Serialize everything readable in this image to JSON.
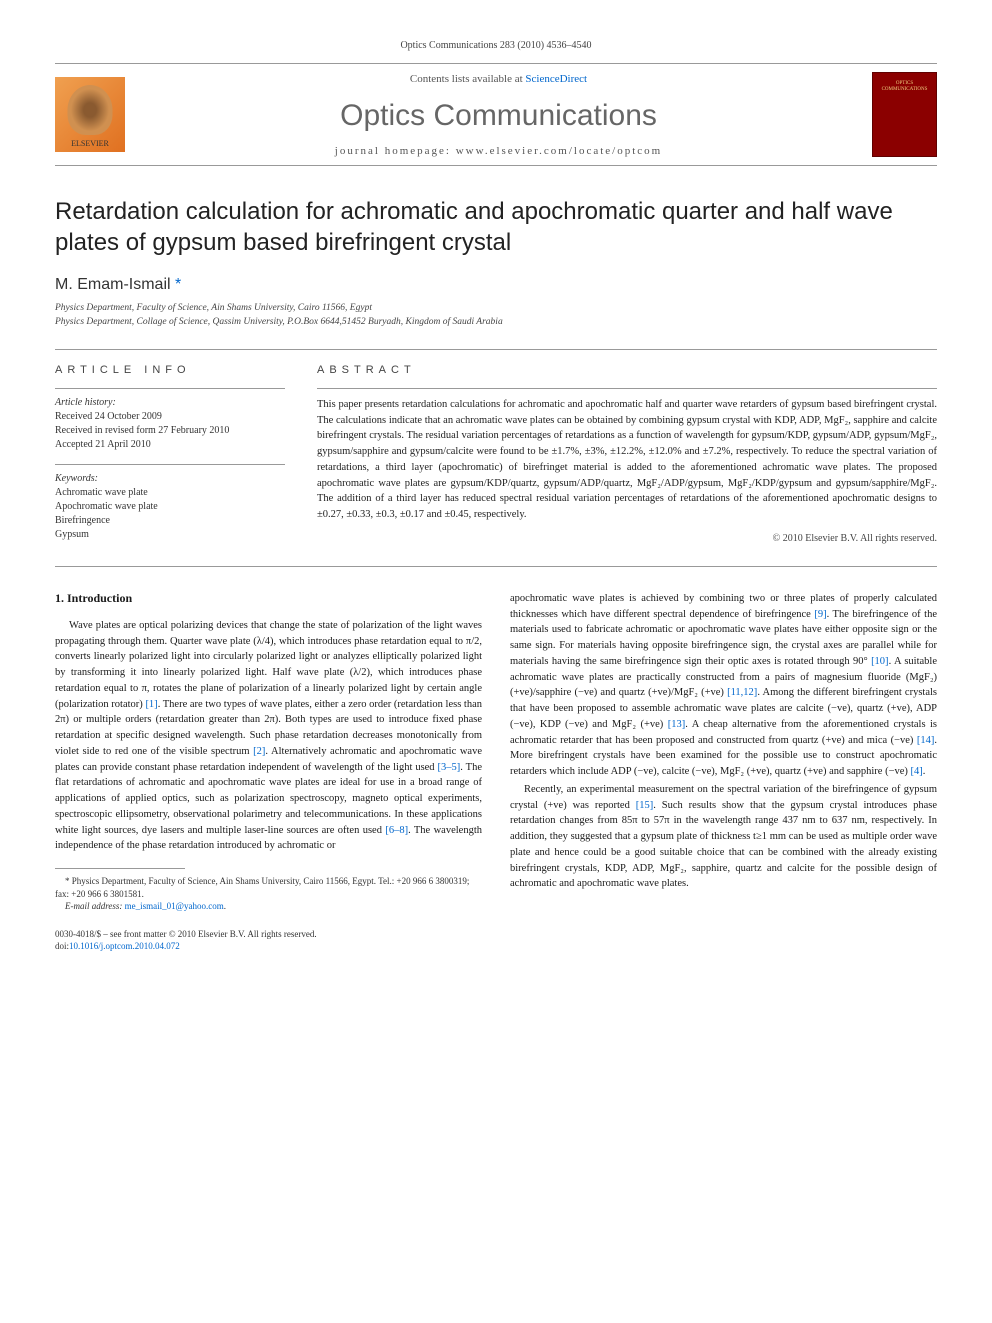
{
  "header": {
    "citation": "Optics Communications 283 (2010) 4536–4540",
    "contentsText": "Contents lists available at ",
    "contentsLink": "ScienceDirect",
    "journalName": "Optics Communications",
    "homepageLabel": "journal homepage: www.elsevier.com/locate/optcom",
    "elsevierLabel": "ELSEVIER",
    "coverLabel": "OPTICS COMMUNICATIONS"
  },
  "title": "Retardation calculation for achromatic and apochromatic quarter and half wave plates of gypsum based birefringent crystal",
  "author": "M. Emam-Ismail",
  "asterisk": "*",
  "affiliations": [
    "Physics Department, Faculty of Science, Ain Shams University, Cairo 11566, Egypt",
    "Physics Department, Collage of Science, Qassim University, P.O.Box 6644,51452 Buryadh, Kingdom of Saudi Arabia"
  ],
  "articleInfo": {
    "heading": "ARTICLE INFO",
    "historyHead": "Article history:",
    "history": "Received 24 October 2009\nReceived in revised form 27 February 2010\nAccepted 21 April 2010",
    "keywordsHead": "Keywords:",
    "keywords": "Achromatic wave plate\nApochromatic wave plate\nBirefringence\nGypsum"
  },
  "abstract": {
    "heading": "ABSTRACT",
    "text": "This paper presents retardation calculations for achromatic and apochromatic half and quarter wave retarders of gypsum based birefringent crystal. The calculations indicate that an achromatic wave plates can be obtained by combining gypsum crystal with KDP, ADP, MgF₂, sapphire and calcite birefringent crystals. The residual variation percentages of retardations as a function of wavelength for gypsum/KDP, gypsum/ADP, gypsum/MgF₂, gypsum/sapphire and gypsum/calcite were found to be ±1.7%, ±3%, ±12.2%, ±12.0% and ±7.2%, respectively. To reduce the spectral variation of retardations, a third layer (apochromatic) of birefringet material is added to the aforementioned achromatic wave plates. The proposed apochromatic wave plates are gypsum/KDP/quartz, gypsum/ADP/quartz, MgF₂/ADP/gypsum, MgF₂/KDP/gypsum and gypsum/sapphire/MgF₂. The addition of a third layer has reduced spectral residual variation percentages of retardations of the aforementioned apochromatic designs to ±0.27, ±0.33, ±0.3, ±0.17 and ±0.45, respectively.",
    "copyright": "© 2010 Elsevier B.V. All rights reserved."
  },
  "body": {
    "introHeading": "1. Introduction",
    "leftParas": [
      "Wave plates are optical polarizing devices that change the state of polarization of the light waves propagating through them. Quarter wave plate (λ/4), which introduces phase retardation equal to π/2, converts linearly polarized light into circularly polarized light or analyzes elliptically polarized light by transforming it into linearly polarized light. Half wave plate (λ/2), which introduces phase retardation equal to π, rotates the plane of polarization of a linearly polarized light by certain angle (polarization rotator) [1]. There are two types of wave plates, either a zero order (retardation less than 2π) or multiple orders (retardation greater than 2π). Both types are used to introduce fixed phase retardation at specific designed wavelength. Such phase retardation decreases monotonically from violet side to red one of the visible spectrum [2]. Alternatively achromatic and apochromatic wave plates can provide constant phase retardation independent of wavelength of the light used [3–5]. The flat retardations of achromatic and apochromatic wave plates are ideal for use in a broad range of applications of applied optics, such as polarization spectroscopy, magneto optical experiments, spectroscopic ellipsometry, observational polarimetry and telecommunications. In these applications white light sources, dye lasers and multiple laser-line sources are often used [6–8]. The wavelength independence of the phase retardation introduced by achromatic or"
    ],
    "rightParas": [
      "apochromatic wave plates is achieved by combining two or three plates of properly calculated thicknesses which have different spectral dependence of birefringence [9]. The birefringence of the materials used to fabricate achromatic or apochromatic wave plates have either opposite sign or the same sign. For materials having opposite birefringence sign, the crystal axes are parallel while for materials having the same birefringence sign their optic axes is rotated through 90° [10]. A suitable achromatic wave plates are practically constructed from a pairs of magnesium fluoride (MgF₂) (+ve)/sapphire (−ve) and quartz (+ve)/MgF₂ (+ve) [11,12]. Among the different birefringent crystals that have been proposed to assemble achromatic wave plates are calcite (−ve), quartz (+ve), ADP (−ve), KDP (−ve) and MgF₂ (+ve) [13]. A cheap alternative from the aforementioned crystals is achromatic retarder that has been proposed and constructed from quartz (+ve) and mica (−ve) [14]. More birefringent crystals have been examined for the possible use to construct apochromatic retarders which include ADP (−ve), calcite (−ve), MgF₂ (+ve), quartz (+ve) and sapphire (−ve) [4].",
      "Recently, an experimental measurement on the spectral variation of the birefringence of gypsum crystal (+ve) was reported [15]. Such results show that the gypsum crystal introduces phase retardation changes from 85π to 57π in the wavelength range 437 nm to 637 nm, respectively. In addition, they suggested that a gypsum plate of thickness t≥1 mm can be used as multiple order wave plate and hence could be a good suitable choice that can be combined with the already existing birefringent crystals, KDP, ADP, MgF₂, sapphire, quartz and calcite for the possible design of achromatic and apochromatic wave plates."
    ]
  },
  "footnote": {
    "affil": "* Physics Department, Faculty of Science, Ain Shams University, Cairo 11566, Egypt. Tel.: +20 966 6 3800319; fax: +20 966 6 3801581.",
    "emailLabel": "E-mail address: ",
    "email": "me_ismail_01@yahoo.com",
    "emailSuffix": "."
  },
  "footer": {
    "line1": "0030-4018/$ – see front matter © 2010 Elsevier B.V. All rights reserved.",
    "doiPrefix": "doi:",
    "doi": "10.1016/j.optcom.2010.04.072"
  },
  "refs": {
    "r1": "[1]",
    "r2": "[2]",
    "r35": "[3–5]",
    "r68": "[6–8]",
    "r9": "[9]",
    "r10": "[10]",
    "r1112": "[11,12]",
    "r13": "[13]",
    "r14": "[14]",
    "r4": "[4]",
    "r15": "[15]"
  }
}
